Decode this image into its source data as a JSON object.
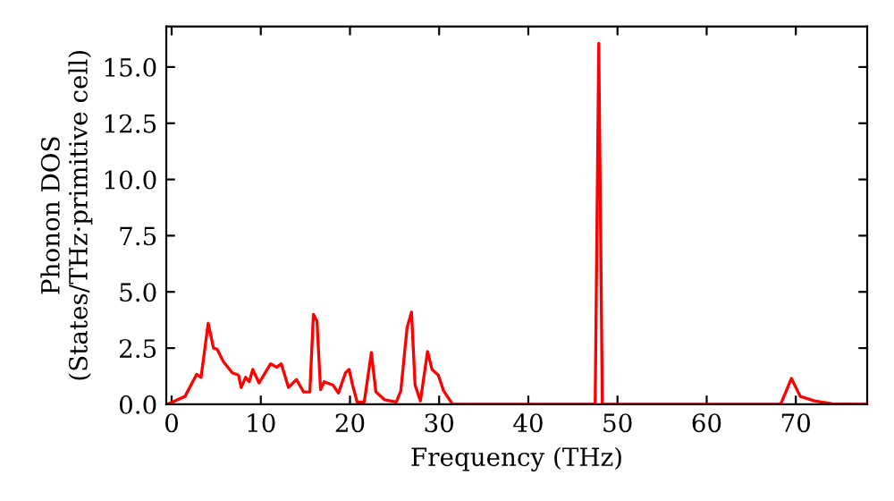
{
  "chart_data": {
    "type": "line",
    "xlabel": "Frequency (THz)",
    "ylabel": "Phonon DOS\n(States/THz·primitive cell)",
    "xlim": [
      -0.6,
      78
    ],
    "ylim": [
      0,
      16.8
    ],
    "xticks": [
      0,
      10,
      20,
      30,
      40,
      50,
      60,
      70
    ],
    "yticks": [
      {
        "value": 0,
        "label": "0.0"
      },
      {
        "value": 2.5,
        "label": "2.5"
      },
      {
        "value": 5,
        "label": "5.0"
      },
      {
        "value": 7.5,
        "label": "7.5"
      },
      {
        "value": 10,
        "label": "10.0"
      },
      {
        "value": 12.5,
        "label": "12.5"
      },
      {
        "value": 15,
        "label": "15.0"
      }
    ],
    "grid": false,
    "legend": false,
    "series": [
      {
        "color": "#ff0000",
        "x": [
          -0.5,
          1.5,
          2.8,
          3.3,
          4.1,
          4.7,
          5.1,
          5.8,
          6.8,
          7.5,
          7.8,
          8.3,
          8.7,
          9.1,
          9.8,
          11.1,
          11.8,
          12.3,
          13.1,
          14.0,
          14.8,
          15.5,
          15.9,
          16.3,
          16.7,
          17.1,
          18.1,
          18.7,
          19.5,
          19.9,
          20.3,
          20.8,
          21.6,
          22.4,
          22.9,
          23.9,
          25.2,
          25.7,
          26.4,
          26.9,
          27.3,
          27.9,
          28.7,
          29.2,
          29.9,
          30.5,
          31.5,
          47.5,
          47.9,
          48.3,
          68.3,
          69.5,
          70.5,
          72.1,
          74.1,
          78
        ],
        "values": [
          0,
          0.35,
          1.33,
          1.2,
          3.6,
          2.5,
          2.45,
          1.9,
          1.4,
          1.3,
          0.75,
          1.2,
          1.0,
          1.55,
          0.95,
          1.8,
          1.65,
          1.8,
          0.75,
          1.1,
          0.55,
          0.55,
          4.0,
          3.7,
          0.65,
          1.0,
          0.85,
          0.5,
          1.4,
          1.55,
          0.85,
          0.1,
          0.1,
          2.3,
          0.55,
          0.2,
          0.1,
          0.6,
          3.4,
          4.1,
          0.85,
          0.15,
          2.35,
          1.55,
          1.3,
          0.6,
          0,
          0,
          16.05,
          0,
          0,
          1.15,
          0.35,
          0.15,
          0.02,
          0
        ]
      }
    ]
  }
}
